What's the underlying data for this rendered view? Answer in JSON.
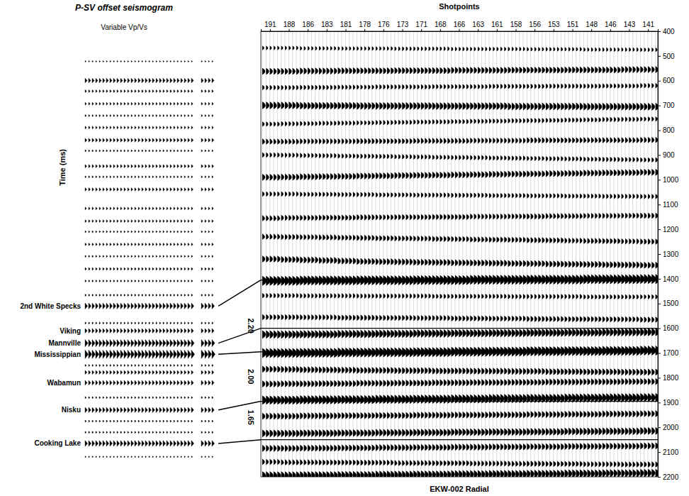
{
  "chart_data": {
    "type": "seismic",
    "title": "P-SV offset seismogram",
    "subtitle": "Variable Vp/Vs",
    "x_label": "Shotpoints",
    "y_label": "Time (ms)",
    "annotations": [
      "EKW-002 Radial"
    ],
    "categories": [
      191,
      188,
      186,
      183,
      181,
      178,
      176,
      173,
      171,
      168,
      166,
      163,
      161,
      158,
      156,
      153,
      151,
      148,
      146,
      143,
      141
    ],
    "ylim": [
      400,
      2200
    ],
    "yticks": [
      400,
      500,
      600,
      700,
      800,
      900,
      1000,
      1100,
      1200,
      1300,
      1400,
      1500,
      1600,
      1700,
      1800,
      1900,
      2000,
      2100,
      2200
    ],
    "horizons": [
      {
        "name": "2nd White Specks",
        "time": 1510,
        "section_time": 1405
      },
      {
        "name": "Viking",
        "time": 1610,
        "section_time": null
      },
      {
        "name": "Mannville",
        "time": 1660,
        "section_time": 1600
      },
      {
        "name": "Mississippian",
        "time": 1705,
        "section_time": 1695
      },
      {
        "name": "Wabamun",
        "time": 1820,
        "section_time": null
      },
      {
        "name": "Nisku",
        "time": 1930,
        "section_time": 1895
      },
      {
        "name": "Cooking Lake",
        "time": 2065,
        "section_time": 2050
      }
    ],
    "vp_vs": [
      {
        "value": 2.2,
        "label": "2.20",
        "time": 1590
      },
      {
        "value": 2.0,
        "label": "2.00",
        "time": 1795
      },
      {
        "value": 1.65,
        "label": "1.65",
        "time": 1960
      }
    ],
    "synthetic_events": [
      {
        "time": 522,
        "amplitude": 0.5
      },
      {
        "time": 599,
        "amplitude": 3
      },
      {
        "time": 642,
        "amplitude": 1.5
      },
      {
        "time": 693,
        "amplitude": 1.5
      },
      {
        "time": 741,
        "amplitude": 1
      },
      {
        "time": 789,
        "amplitude": 1.5
      },
      {
        "time": 840,
        "amplitude": 2.5
      },
      {
        "time": 883,
        "amplitude": 1
      },
      {
        "time": 945,
        "amplitude": 2
      },
      {
        "time": 988,
        "amplitude": 1
      },
      {
        "time": 1039,
        "amplitude": 2
      },
      {
        "time": 1116,
        "amplitude": 1.5
      },
      {
        "time": 1167,
        "amplitude": 1.5
      },
      {
        "time": 1210,
        "amplitude": 1
      },
      {
        "time": 1261,
        "amplitude": 1.5
      },
      {
        "time": 1309,
        "amplitude": 1
      },
      {
        "time": 1360,
        "amplitude": 1.5
      },
      {
        "time": 1409,
        "amplitude": 1
      },
      {
        "time": 1466,
        "amplitude": 1
      },
      {
        "time": 1510,
        "amplitude": 4
      },
      {
        "time": 1579,
        "amplitude": 1
      },
      {
        "time": 1610,
        "amplitude": 3
      },
      {
        "time": 1660,
        "amplitude": 5
      },
      {
        "time": 1705,
        "amplitude": 6
      },
      {
        "time": 1750,
        "amplitude": 1
      },
      {
        "time": 1778,
        "amplitude": 2.5
      },
      {
        "time": 1820,
        "amplitude": 3
      },
      {
        "time": 1880,
        "amplitude": 1
      },
      {
        "time": 1930,
        "amplitude": 3.5
      },
      {
        "time": 1975,
        "amplitude": 1
      },
      {
        "time": 2020,
        "amplitude": 1
      },
      {
        "time": 2065,
        "amplitude": 4
      },
      {
        "time": 2119,
        "amplitude": 0.5
      }
    ],
    "section_events": [
      {
        "amplitude": 1.5,
        "times": [
          468,
          468,
          469,
          469,
          470,
          470,
          470,
          471,
          471,
          471,
          472,
          472,
          472,
          472,
          473,
          473,
          473,
          474,
          474,
          474,
          475
        ]
      },
      {
        "amplitude": 3,
        "times": [
          562,
          562,
          561,
          561,
          560,
          560,
          560,
          559,
          559,
          559,
          558,
          558,
          558,
          557,
          557,
          557,
          556,
          556,
          556,
          555,
          555
        ]
      },
      {
        "amplitude": 2,
        "times": [
          628,
          628,
          627,
          627,
          626,
          626,
          625,
          625,
          625,
          624,
          624,
          624,
          623,
          623,
          623,
          622,
          622,
          622,
          621,
          621,
          620
        ]
      },
      {
        "amplitude": 3.5,
        "times": [
          700,
          700,
          701,
          701,
          701,
          702,
          702,
          702,
          702,
          703,
          703,
          703,
          703,
          704,
          704,
          704,
          704,
          705,
          705,
          705,
          705
        ]
      },
      {
        "amplitude": 2,
        "times": [
          775,
          774,
          773,
          772,
          771,
          770,
          769,
          768,
          767,
          766,
          765,
          764,
          763,
          762,
          761,
          760,
          759,
          758,
          757,
          756,
          755
        ]
      },
      {
        "amplitude": 2.5,
        "times": [
          846,
          846,
          845,
          845,
          845,
          844,
          844,
          844,
          843,
          843,
          843,
          842,
          842,
          842,
          841,
          841,
          841,
          840,
          840,
          840,
          839
        ]
      },
      {
        "amplitude": 2,
        "times": [
          900,
          901,
          902,
          903,
          904,
          905,
          906,
          907,
          908,
          909,
          910,
          911,
          912,
          913,
          914,
          915,
          916,
          917,
          918,
          919,
          920
        ]
      },
      {
        "amplitude": 3,
        "times": [
          990,
          989,
          988,
          987,
          986,
          985,
          984,
          983,
          982,
          981,
          980,
          979,
          978,
          977,
          976,
          975,
          974,
          973,
          972,
          971,
          970
        ]
      },
      {
        "amplitude": 2,
        "times": [
          1058,
          1058,
          1059,
          1059,
          1060,
          1060,
          1061,
          1061,
          1062,
          1062,
          1063,
          1063,
          1064,
          1064,
          1065,
          1065,
          1066,
          1066,
          1067,
          1067,
          1068
        ]
      },
      {
        "amplitude": 2.5,
        "times": [
          1155,
          1154,
          1154,
          1153,
          1153,
          1152,
          1152,
          1151,
          1151,
          1150,
          1150,
          1149,
          1149,
          1148,
          1148,
          1147,
          1147,
          1146,
          1146,
          1145,
          1145
        ]
      },
      {
        "amplitude": 2.5,
        "times": [
          1230,
          1231,
          1232,
          1233,
          1234,
          1235,
          1236,
          1237,
          1238,
          1239,
          1240,
          1241,
          1242,
          1243,
          1244,
          1245,
          1246,
          1247,
          1248,
          1249,
          1250
        ]
      },
      {
        "amplitude": 3,
        "times": [
          1320,
          1322,
          1324,
          1326,
          1328,
          1330,
          1331,
          1332,
          1333,
          1334,
          1335,
          1336,
          1337,
          1338,
          1339,
          1340,
          1341,
          1342,
          1343,
          1344,
          1345
        ]
      },
      {
        "amplitude": 5,
        "times": [
          1408,
          1408,
          1407,
          1407,
          1407,
          1406,
          1406,
          1406,
          1405,
          1405,
          1405,
          1404,
          1404,
          1404,
          1403,
          1403,
          1403,
          1402,
          1402,
          1402,
          1401
        ]
      },
      {
        "amplitude": 2,
        "times": [
          1468,
          1468,
          1469,
          1469,
          1469,
          1470,
          1470,
          1470,
          1470,
          1471,
          1471,
          1471,
          1471,
          1472,
          1472,
          1472,
          1472,
          1473,
          1473,
          1473,
          1473
        ]
      },
      {
        "amplitude": 2.5,
        "times": [
          1555,
          1555,
          1556,
          1556,
          1557,
          1557,
          1558,
          1558,
          1559,
          1559,
          1560,
          1560,
          1561,
          1561,
          1562,
          1562,
          1563,
          1563,
          1564,
          1564,
          1565
        ]
      },
      {
        "amplitude": 4,
        "times": [
          1625,
          1625,
          1624,
          1624,
          1623,
          1623,
          1622,
          1622,
          1621,
          1621,
          1620,
          1620,
          1619,
          1619,
          1618,
          1618,
          1617,
          1617,
          1616,
          1616,
          1615
        ]
      },
      {
        "amplitude": 5,
        "times": [
          1700,
          1700,
          1699,
          1699,
          1698,
          1698,
          1697,
          1697,
          1696,
          1696,
          1695,
          1695,
          1694,
          1694,
          1693,
          1693,
          1692,
          1692,
          1691,
          1691,
          1690
        ]
      },
      {
        "amplitude": 3,
        "times": [
          1765,
          1766,
          1767,
          1768,
          1769,
          1770,
          1770,
          1771,
          1771,
          1772,
          1772,
          1773,
          1773,
          1774,
          1774,
          1775,
          1775,
          1776,
          1776,
          1777,
          1777
        ]
      },
      {
        "amplitude": 3,
        "times": [
          1825,
          1824,
          1824,
          1823,
          1823,
          1822,
          1822,
          1821,
          1821,
          1820,
          1820,
          1819,
          1819,
          1818,
          1818,
          1817,
          1817,
          1816,
          1816,
          1815,
          1815
        ]
      },
      {
        "amplitude": 4.5,
        "times": [
          1890,
          1890,
          1889,
          1889,
          1888,
          1888,
          1887,
          1887,
          1886,
          1886,
          1885,
          1885,
          1884,
          1884,
          1883,
          1883,
          1882,
          1882,
          1881,
          1881,
          1880
        ]
      },
      {
        "amplitude": 3,
        "times": [
          1955,
          1955,
          1954,
          1954,
          1953,
          1953,
          1952,
          1952,
          1951,
          1951,
          1950,
          1950,
          1949,
          1949,
          1948,
          1948,
          1947,
          1947,
          1946,
          1946,
          1945
        ]
      },
      {
        "amplitude": 3.5,
        "times": [
          2025,
          2025,
          2024,
          2024,
          2023,
          2023,
          2022,
          2022,
          2021,
          2021,
          2020,
          2020,
          2019,
          2019,
          2018,
          2018,
          2017,
          2017,
          2016,
          2016,
          2015
        ]
      },
      {
        "amplitude": 3,
        "times": [
          2085,
          2085,
          2084,
          2084,
          2083,
          2083,
          2082,
          2082,
          2081,
          2081,
          2080,
          2080,
          2079,
          2079,
          2078,
          2078,
          2077,
          2077,
          2076,
          2076,
          2075
        ]
      },
      {
        "amplitude": 2.5,
        "times": [
          2140,
          2141,
          2141,
          2142,
          2142,
          2143,
          2143,
          2144,
          2144,
          2145,
          2145,
          2146,
          2146,
          2147,
          2147,
          2148,
          2148,
          2149,
          2149,
          2150,
          2150
        ]
      },
      {
        "amplitude": 4,
        "times": [
          2195,
          2195,
          2194,
          2194,
          2193,
          2193,
          2192,
          2192,
          2191,
          2191,
          2190,
          2190,
          2189,
          2189,
          2188,
          2188,
          2187,
          2187,
          2186,
          2186,
          2185
        ]
      }
    ]
  }
}
